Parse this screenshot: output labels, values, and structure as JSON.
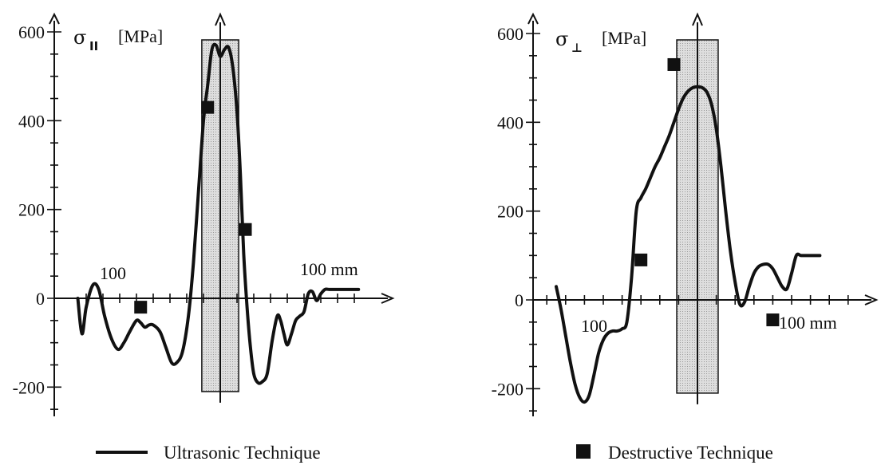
{
  "chart_data": [
    {
      "type": "line",
      "y_symbol": "σ",
      "y_subscript": "II",
      "y_unit": "[MPa]",
      "x_left_label": "100",
      "x_right_label": "100 mm",
      "yticks": [
        "600",
        "400",
        "200",
        "0",
        "-200"
      ],
      "ylim": [
        -260,
        640
      ],
      "xlim": [
        -180,
        180
      ],
      "shaded_zone": [
        -22,
        22
      ],
      "ultrasonic": {
        "x": [
          -170,
          -165,
          -160,
          -152,
          -145,
          -138,
          -130,
          -122,
          -115,
          -108,
          -100,
          -95,
          -90,
          -85,
          -80,
          -72,
          -65,
          -58,
          -52,
          -45,
          -38,
          -32,
          -26,
          -20,
          -15,
          -10,
          -5,
          0,
          5,
          10,
          15,
          20,
          24,
          28,
          32,
          36,
          40,
          45,
          50,
          56,
          62,
          68,
          72,
          76,
          80,
          85,
          90,
          95,
          100,
          105,
          110,
          115,
          120,
          125,
          130,
          135,
          140,
          145,
          150,
          155,
          160,
          165
        ],
        "values": [
          0,
          -80,
          -20,
          30,
          20,
          -40,
          -90,
          -115,
          -100,
          -75,
          -50,
          -55,
          -65,
          -60,
          -60,
          -75,
          -110,
          -145,
          -145,
          -120,
          -40,
          80,
          240,
          400,
          480,
          560,
          570,
          545,
          560,
          565,
          520,
          420,
          280,
          100,
          -20,
          -110,
          -170,
          -190,
          -188,
          -170,
          -95,
          -40,
          -50,
          -80,
          -105,
          -80,
          -50,
          -40,
          -30,
          10,
          15,
          -5,
          10,
          20,
          20,
          20,
          20,
          20,
          20,
          20,
          20,
          20
        ]
      },
      "destructive": {
        "x": [
          -95,
          -15,
          30
        ],
        "values": [
          -20,
          430,
          155
        ]
      },
      "legend": "Ultrasonic Technique"
    },
    {
      "type": "line",
      "y_symbol": "σ",
      "y_subscript": "⊥",
      "y_unit": "[MPa]",
      "x_left_label": "100",
      "x_right_label": "100 mm",
      "yticks": [
        "600",
        "400",
        "200",
        "0",
        "-200"
      ],
      "ylim": [
        -260,
        640
      ],
      "xlim": [
        -170,
        170
      ],
      "shaded_zone": [
        -22,
        22
      ],
      "ultrasonic": {
        "x": [
          -150,
          -145,
          -140,
          -135,
          -130,
          -125,
          -120,
          -115,
          -110,
          -105,
          -100,
          -95,
          -90,
          -85,
          -80,
          -75,
          -70,
          -65,
          -60,
          -55,
          -50,
          -45,
          -40,
          -35,
          -30,
          -25,
          -20,
          -15,
          -10,
          -5,
          0,
          5,
          10,
          15,
          20,
          25,
          30,
          35,
          40,
          45,
          50,
          55,
          60,
          65,
          70,
          75,
          80,
          85,
          90,
          95,
          100,
          105,
          110,
          115,
          120,
          125,
          130
        ],
        "values": [
          30,
          -20,
          -80,
          -140,
          -190,
          -220,
          -230,
          -215,
          -170,
          -120,
          -90,
          -75,
          -70,
          -70,
          -65,
          -50,
          50,
          200,
          230,
          250,
          275,
          300,
          320,
          345,
          370,
          400,
          430,
          455,
          470,
          478,
          480,
          478,
          468,
          440,
          385,
          300,
          200,
          110,
          40,
          -10,
          -5,
          30,
          60,
          75,
          80,
          80,
          70,
          50,
          30,
          25,
          60,
          100,
          100,
          100,
          100,
          100,
          100
        ]
      },
      "destructive": {
        "x": [
          -60,
          -25,
          80
        ],
        "values": [
          90,
          530,
          -45
        ]
      },
      "legend": "Destructive Technique"
    }
  ]
}
